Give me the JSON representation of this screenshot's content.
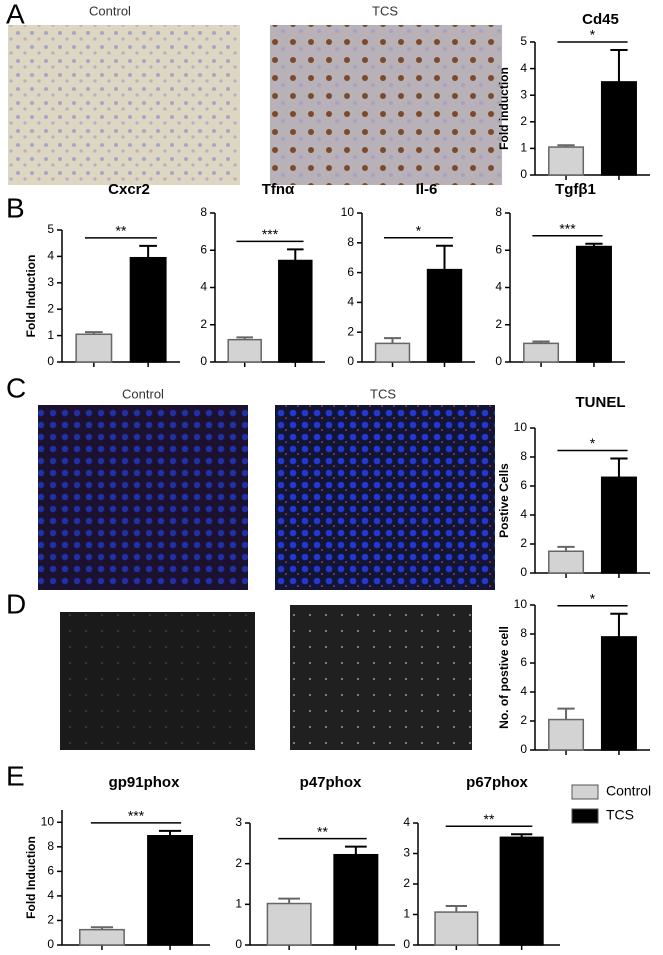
{
  "panels": [
    "A",
    "B",
    "C",
    "D",
    "E"
  ],
  "captions": {
    "a_control": "Control",
    "a_tcs": "TCS",
    "c_control": "Control",
    "c_tcs": "TCS"
  },
  "legend": [
    {
      "name": "Control",
      "color": "#d3d3d3"
    },
    {
      "name": "TCS",
      "color": "#000000"
    }
  ],
  "chart_data": [
    {
      "type": "bar",
      "title": "Cd45",
      "ylabel": "Fold  induction",
      "values": [
        1.05,
        3.5
      ],
      "errors": [
        0.07,
        1.2
      ],
      "significance": "*",
      "ylim": [
        0,
        5
      ],
      "yticks": [
        0,
        1,
        2,
        3,
        4,
        5
      ]
    },
    {
      "type": "bar",
      "title": "Cxcr2",
      "ylabel": "Fold Induction",
      "values": [
        1.05,
        3.95
      ],
      "errors": [
        0.08,
        0.45
      ],
      "significance": "**",
      "ylim": [
        0,
        5
      ],
      "yticks": [
        0,
        1,
        2,
        3,
        4,
        5
      ]
    },
    {
      "type": "bar",
      "title": "Tfnα",
      "values": [
        1.2,
        5.45
      ],
      "errors": [
        0.12,
        0.6
      ],
      "significance": "***",
      "ylim": [
        0,
        8
      ],
      "yticks": [
        0,
        2,
        4,
        6,
        8
      ]
    },
    {
      "type": "bar",
      "title": "Il-6",
      "values": [
        1.25,
        6.2
      ],
      "errors": [
        0.35,
        1.6
      ],
      "significance": "*",
      "ylim": [
        0,
        10
      ],
      "yticks": [
        0,
        2,
        4,
        6,
        8,
        10
      ]
    },
    {
      "type": "bar",
      "title": "Tgfβ1",
      "values": [
        1.0,
        6.2
      ],
      "errors": [
        0.1,
        0.15
      ],
      "significance": "***",
      "ylim": [
        0,
        8
      ],
      "yticks": [
        0,
        2,
        4,
        6,
        8
      ]
    },
    {
      "type": "bar",
      "title": "TUNEL",
      "ylabel": "Postive Cells",
      "values": [
        1.5,
        6.6
      ],
      "errors": [
        0.3,
        1.3
      ],
      "significance": "*",
      "ylim": [
        0,
        10
      ],
      "yticks": [
        0,
        2,
        4,
        6,
        8,
        10
      ]
    },
    {
      "type": "bar",
      "ylabel": "No. of postive cell",
      "values": [
        2.1,
        7.8
      ],
      "errors": [
        0.75,
        1.6
      ],
      "significance": "*",
      "ylim": [
        0,
        10
      ],
      "yticks": [
        0,
        2,
        4,
        6,
        8,
        10
      ]
    },
    {
      "type": "bar",
      "title": "gp91phox",
      "ylabel": "Fold Induction",
      "values": [
        1.25,
        8.9
      ],
      "errors": [
        0.2,
        0.4
      ],
      "significance": "***",
      "ylim": [
        0,
        11
      ],
      "yticks": [
        0,
        2,
        4,
        6,
        8,
        10
      ]
    },
    {
      "type": "bar",
      "title": "p47phox",
      "values": [
        1.02,
        2.22
      ],
      "errors": [
        0.12,
        0.2
      ],
      "significance": "**",
      "ylim": [
        0,
        3
      ],
      "yticks": [
        0,
        1,
        2,
        3
      ]
    },
    {
      "type": "bar",
      "title": "p67phox",
      "values": [
        1.08,
        3.53
      ],
      "errors": [
        0.2,
        0.1
      ],
      "significance": "**",
      "ylim": [
        0,
        4
      ],
      "yticks": [
        0,
        1,
        2,
        3,
        4
      ]
    }
  ]
}
